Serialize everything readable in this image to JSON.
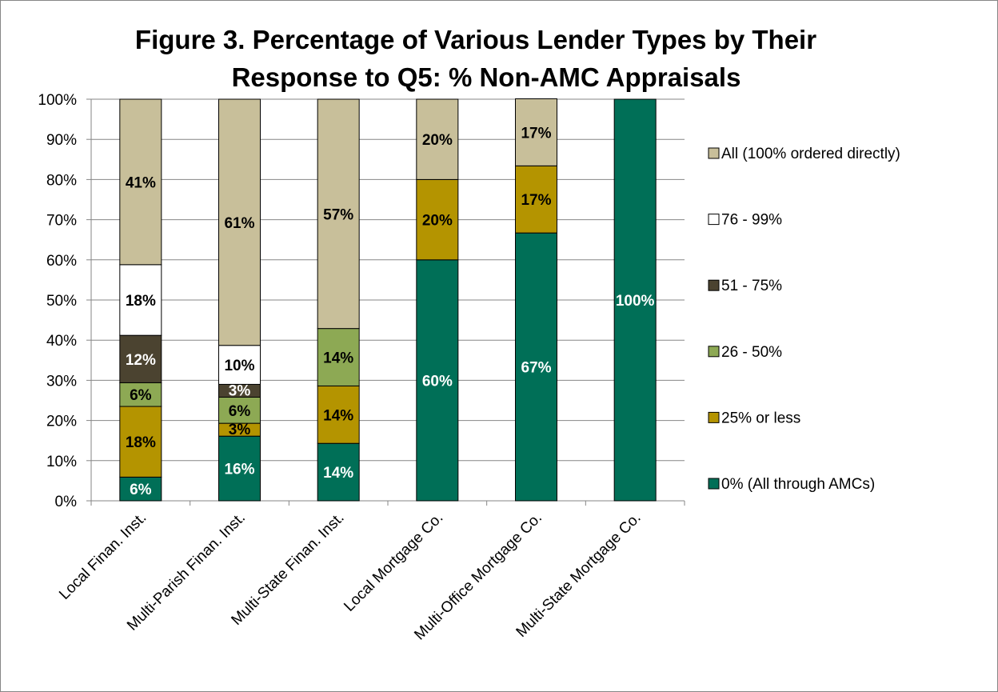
{
  "chart_data": {
    "type": "bar",
    "stacked": true,
    "title": "Figure 3.  Percentage of Various Lender Types by Their Response to Q5: % Non-AMC Appraisals",
    "title_lines": [
      "Figure 3.  Percentage of Various Lender Types by Their",
      "Response to Q5: % Non-AMC Appraisals"
    ],
    "xlabel": "",
    "ylabel": "",
    "ylim": [
      0,
      100
    ],
    "y_ticks": [
      "0%",
      "10%",
      "20%",
      "30%",
      "40%",
      "50%",
      "60%",
      "70%",
      "80%",
      "90%",
      "100%"
    ],
    "grid": true,
    "legend_position": "right",
    "categories": [
      "Local Finan. Inst.",
      "Multi-Parish Finan. Inst.",
      "Multi-State Finan. Inst.",
      "Local Mortgage Co.",
      "Multi-Office Mortgage Co.",
      "Multi-State Mortgage Co."
    ],
    "series": [
      {
        "name": "0% (All through AMCs)",
        "color": "#006F57",
        "label_color": "#ffffff",
        "values": [
          5.9,
          16.1,
          14.3,
          60,
          66.7,
          100
        ],
        "labels": [
          "6%",
          "16%",
          "14%",
          "60%",
          "67%",
          "100%"
        ]
      },
      {
        "name": "25% or less",
        "color": "#B49400",
        "label_color": "#000000",
        "values": [
          17.6,
          3.2,
          14.3,
          20,
          16.7,
          0
        ],
        "labels": [
          "18%",
          "3%",
          "14%",
          "20%",
          "17%",
          ""
        ]
      },
      {
        "name": "26 - 50%",
        "color": "#8DA954",
        "label_color": "#000000",
        "values": [
          5.9,
          6.5,
          14.3,
          0,
          0,
          0
        ],
        "labels": [
          "6%",
          "6%",
          "14%",
          "",
          "",
          ""
        ]
      },
      {
        "name": "51 - 75%",
        "color": "#4B4330",
        "label_color": "#ffffff",
        "values": [
          11.8,
          3.2,
          0,
          0,
          0,
          0
        ],
        "labels": [
          "12%",
          "3%",
          "",
          "",
          "",
          ""
        ]
      },
      {
        "name": "76 - 99%",
        "color": "#ffffff",
        "label_color": "#000000",
        "values": [
          17.6,
          9.7,
          0,
          0,
          0,
          0
        ],
        "labels": [
          "18%",
          "10%",
          "",
          "",
          "",
          ""
        ]
      },
      {
        "name": "All (100% ordered directly)",
        "color": "#C8BF9A",
        "label_color": "#000000",
        "values": [
          41.2,
          61.3,
          57.1,
          20,
          16.7,
          0
        ],
        "labels": [
          "41%",
          "61%",
          "57%",
          "20%",
          "17%",
          ""
        ]
      }
    ],
    "legend_order": [
      "All (100% ordered directly)",
      "76 - 99%",
      "51 - 75%",
      "26 - 50%",
      "25% or less",
      "0% (All through AMCs)"
    ]
  }
}
